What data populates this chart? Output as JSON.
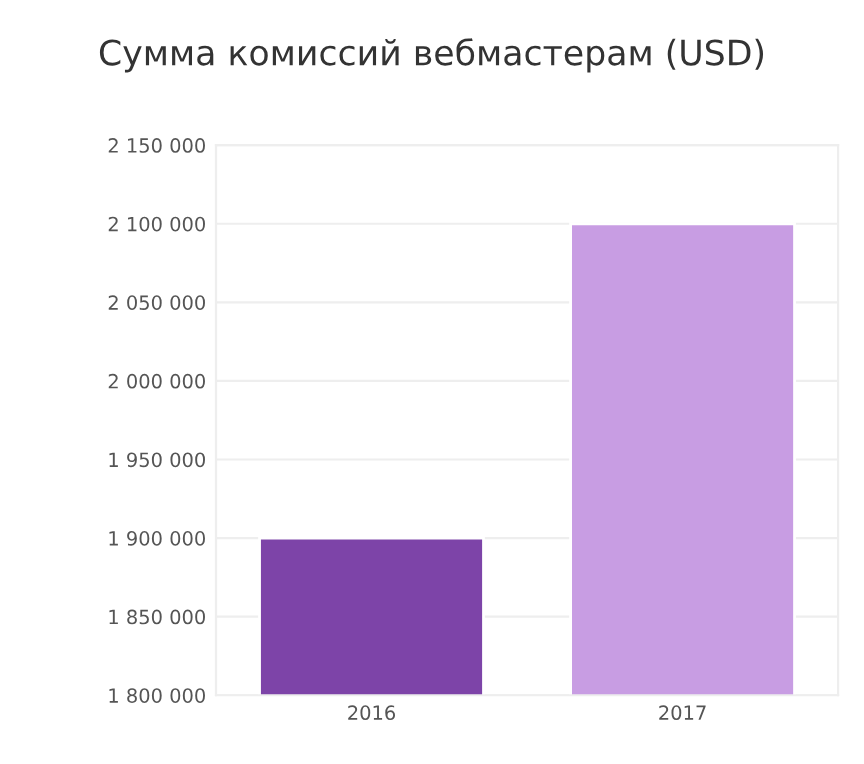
{
  "chart_data": {
    "type": "bar",
    "title": "Сумма комиссий вебмастерам (USD)",
    "categories": [
      "2016",
      "2017"
    ],
    "values": [
      1900000,
      2100000
    ],
    "colors": [
      "#7d44a8",
      "#c89de3"
    ],
    "ylim": [
      1800000,
      2150000
    ],
    "yticks": [
      {
        "value": 1800000,
        "label": "1 800 000"
      },
      {
        "value": 1850000,
        "label": "1 850 000"
      },
      {
        "value": 1900000,
        "label": "1 900 000"
      },
      {
        "value": 1950000,
        "label": "1 950 000"
      },
      {
        "value": 2000000,
        "label": "2 000 000"
      },
      {
        "value": 2050000,
        "label": "2 050 000"
      },
      {
        "value": 2100000,
        "label": "2 100 000"
      },
      {
        "value": 2150000,
        "label": "2 150 000"
      }
    ],
    "grid": "y"
  }
}
